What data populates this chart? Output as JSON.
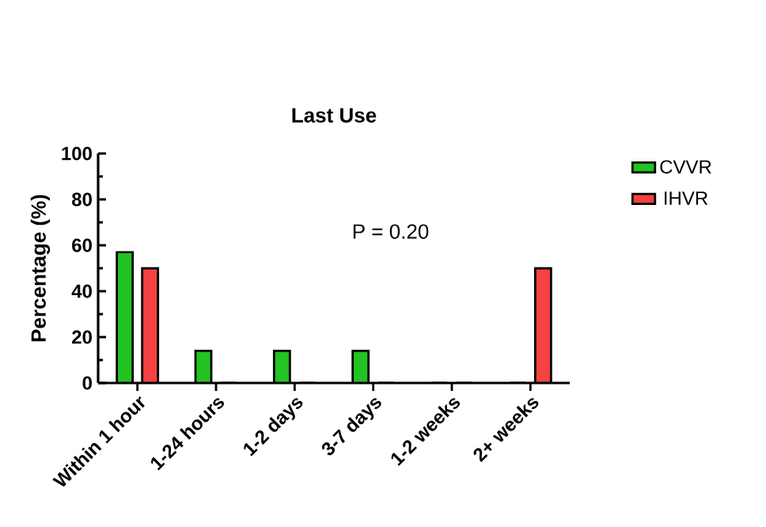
{
  "chart_data": {
    "type": "bar",
    "title": "Last Use",
    "ylabel": "Percentage  (%)",
    "categories": [
      "Within 1 hour",
      "1-24 hours",
      "1-2 days",
      "3-7 days",
      "1-2 weeks",
      "2+ weeks"
    ],
    "series": [
      {
        "name": "CVVR",
        "color": "#22c322",
        "values": [
          57,
          14,
          14,
          14,
          0,
          0
        ]
      },
      {
        "name": "IHVR",
        "color": "#f54242",
        "values": [
          50,
          0,
          0,
          0,
          0,
          50
        ]
      }
    ],
    "ylim": [
      0,
      100
    ],
    "yticks": [
      0,
      20,
      40,
      60,
      80,
      100
    ],
    "grid": false,
    "legend": "top right",
    "annotations": [
      "P = 0.20"
    ]
  }
}
